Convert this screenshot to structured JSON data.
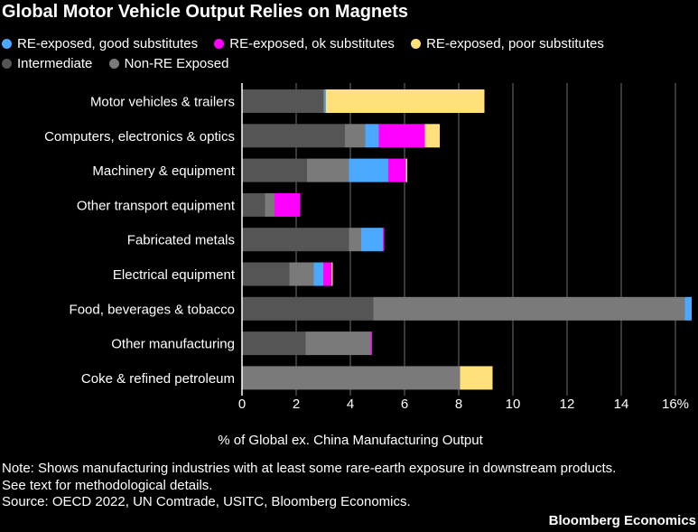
{
  "title": "Global Motor Vehicle Output Relies on Magnets",
  "legend": [
    {
      "label": "RE-exposed, good substitutes",
      "color": "#4aa8ff"
    },
    {
      "label": "RE-exposed, ok substitutes",
      "color": "#ff00ff"
    },
    {
      "label": "RE-exposed, poor substitutes",
      "color": "#ffe07a"
    },
    {
      "label": "Intermediate",
      "color": "#555555"
    },
    {
      "label": "Non-RE Exposed",
      "color": "#7a7a7a"
    }
  ],
  "chart_data": {
    "type": "bar",
    "orientation": "horizontal",
    "stacked": true,
    "categories": [
      "Motor vehicles & trailers",
      "Computers, electronics & optics",
      "Machinery & equipment",
      "Other transport equipment",
      "Fabricated metals",
      "Electrical equipment",
      "Food, beverages & tobacco",
      "Other manufacturing",
      "Coke & refined petroleum"
    ],
    "series": [
      {
        "name": "Intermediate",
        "color": "#555555",
        "values": [
          3.0,
          3.8,
          2.4,
          0.85,
          3.95,
          1.75,
          4.85,
          2.35,
          0
        ]
      },
      {
        "name": "Non-RE Exposed",
        "color": "#7a7a7a",
        "values": [
          0.05,
          0.75,
          1.55,
          0.35,
          0.45,
          0.9,
          11.5,
          2.4,
          8.05
        ]
      },
      {
        "name": "RE-exposed, good substitutes",
        "color": "#4aa8ff",
        "values": [
          0.05,
          0.5,
          1.45,
          0,
          0.8,
          0.35,
          0.25,
          0,
          0
        ]
      },
      {
        "name": "RE-exposed, ok substitutes",
        "color": "#ff00ff",
        "values": [
          0,
          1.7,
          0.65,
          0.95,
          0.05,
          0.3,
          0,
          0.05,
          0
        ]
      },
      {
        "name": "RE-exposed, poor substitutes",
        "color": "#ffe07a",
        "values": [
          5.85,
          0.55,
          0.05,
          0,
          0,
          0.05,
          0,
          0,
          1.2
        ]
      }
    ],
    "xticks": [
      0,
      2,
      4,
      6,
      8,
      10,
      12,
      14,
      16
    ],
    "xtick_labels": [
      "0",
      "2",
      "4",
      "6",
      "8",
      "10",
      "12",
      "14",
      "16%"
    ],
    "xlim": [
      0,
      16
    ],
    "xlabel": "% of Global ex. China Manufacturing Output",
    "grid": "vertical"
  },
  "footer": {
    "note_line1": "Note: Shows manufacturing industries with at least some rare-earth exposure in downstream products.",
    "note_line2": "See text for methodological details.",
    "source": "Source: OECD 2022, UN Comtrade, USITC, Bloomberg Economics."
  },
  "brand": "Bloomberg Economics",
  "colors": {
    "background": "#000000",
    "gridline": "#4a4a4a",
    "text": "#ffffff"
  }
}
